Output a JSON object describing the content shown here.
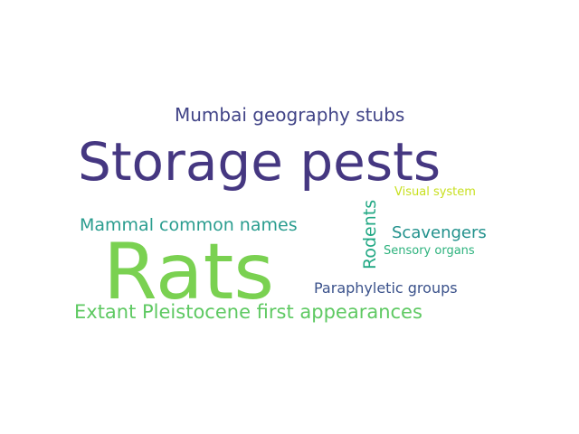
{
  "words": [
    {
      "text": "Storage pests",
      "color": "#453781"
    },
    {
      "text": "Rats",
      "color": "#7ad151"
    },
    {
      "text": "Mumbai geography stubs",
      "color": "#414487"
    },
    {
      "text": "Mammal common names",
      "color": "#2a9d8f"
    },
    {
      "text": "Extant Pleistocene first appearances",
      "color": "#5ec962"
    },
    {
      "text": "Rodents",
      "color": "#22a884"
    },
    {
      "text": "Scavengers",
      "color": "#21918c"
    },
    {
      "text": "Visual system",
      "color": "#c8e020"
    },
    {
      "text": "Sensory organs",
      "color": "#2db27d"
    },
    {
      "text": "Paraphyletic groups",
      "color": "#3b528b"
    }
  ]
}
